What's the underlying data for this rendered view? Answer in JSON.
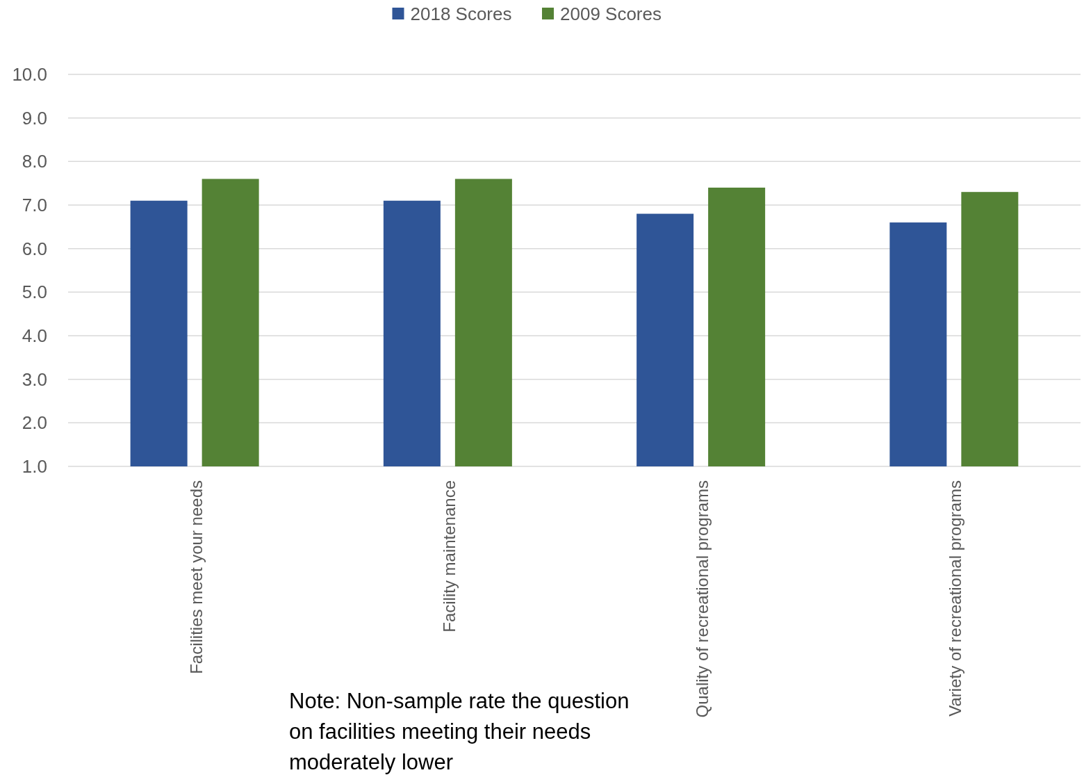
{
  "chart_data": {
    "type": "bar",
    "categories": [
      "Facilities meet your needs",
      "Facility maintenance",
      "Quality of recreational programs",
      "Variety of recreational programs"
    ],
    "series": [
      {
        "name": "2018 Scores",
        "color": "#2f5597",
        "values": [
          7.1,
          7.1,
          6.8,
          6.6
        ]
      },
      {
        "name": "2009 Scores",
        "color": "#548235",
        "values": [
          7.6,
          7.6,
          7.4,
          7.3
        ]
      }
    ],
    "ylim": [
      1,
      10
    ],
    "yticks": [
      {
        "value": 1,
        "label": "1.0"
      },
      {
        "value": 2,
        "label": "2.0"
      },
      {
        "value": 3,
        "label": "3.0"
      },
      {
        "value": 4,
        "label": "4.0"
      },
      {
        "value": 5,
        "label": "5.0"
      },
      {
        "value": 6,
        "label": "6.0"
      },
      {
        "value": 7,
        "label": "7.0"
      },
      {
        "value": 8,
        "label": "8.0"
      },
      {
        "value": 9,
        "label": "9.0"
      },
      {
        "value": 10,
        "label": "10.0"
      }
    ],
    "grid": "y",
    "legend": "top",
    "annotations": [
      "Note: Non-sample rate the question on facilities meeting their needs moderately lower"
    ]
  }
}
